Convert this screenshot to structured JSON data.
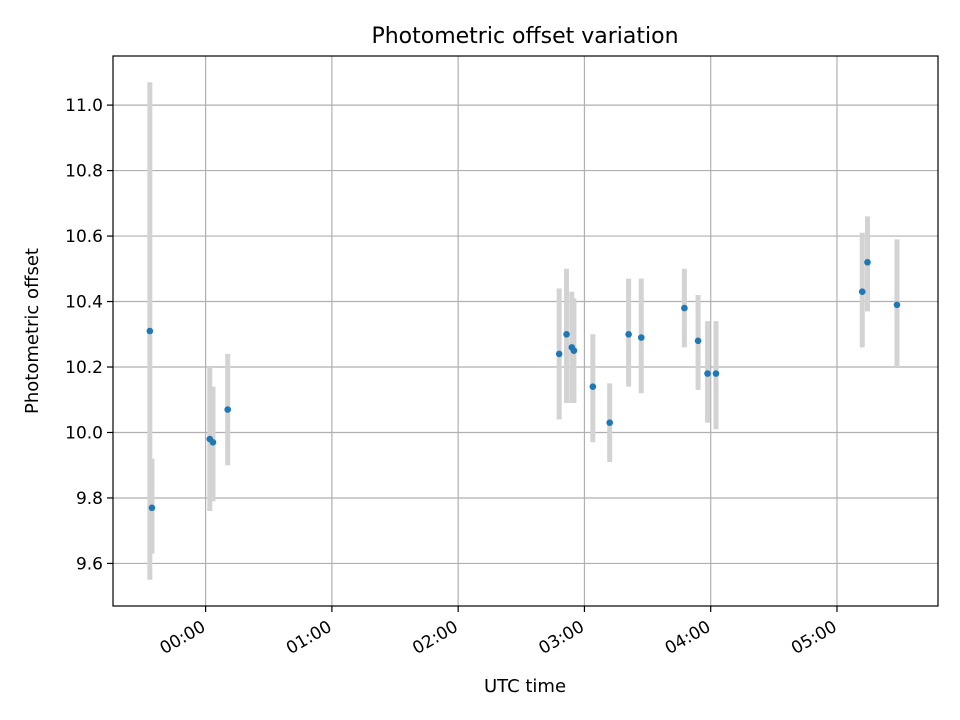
{
  "chart_data": {
    "type": "scatter",
    "title": "Photometric offset variation",
    "xlabel": "UTC time",
    "ylabel": "Photometric offset",
    "x_unit": "minutes after 00:00 UTC",
    "xlim": [
      -44,
      348
    ],
    "ylim": [
      9.47,
      11.15
    ],
    "grid": true,
    "x_ticks": [
      {
        "value": 0,
        "label": "00:00"
      },
      {
        "value": 60,
        "label": "01:00"
      },
      {
        "value": 120,
        "label": "02:00"
      },
      {
        "value": 180,
        "label": "03:00"
      },
      {
        "value": 240,
        "label": "04:00"
      },
      {
        "value": 300,
        "label": "05:00"
      }
    ],
    "y_ticks": [
      {
        "value": 9.6,
        "label": "9.6"
      },
      {
        "value": 9.8,
        "label": "9.8"
      },
      {
        "value": 10.0,
        "label": "10.0"
      },
      {
        "value": 10.2,
        "label": "10.2"
      },
      {
        "value": 10.4,
        "label": "10.4"
      },
      {
        "value": 10.6,
        "label": "10.6"
      },
      {
        "value": 10.8,
        "label": "10.8"
      },
      {
        "value": 11.0,
        "label": "11.0"
      }
    ],
    "colors": {
      "point": "#1f77b4",
      "errorbar": "#d3d3d3",
      "grid": "#b0b0b0"
    },
    "points": [
      {
        "x": -26.5,
        "y": 10.31,
        "ylow": 9.55,
        "yhigh": 11.07
      },
      {
        "x": -25.5,
        "y": 9.77,
        "ylow": 9.63,
        "yhigh": 9.92
      },
      {
        "x": 2.0,
        "y": 9.98,
        "ylow": 9.76,
        "yhigh": 10.2
      },
      {
        "x": 3.5,
        "y": 9.97,
        "ylow": 9.79,
        "yhigh": 10.14
      },
      {
        "x": 10.5,
        "y": 10.07,
        "ylow": 9.9,
        "yhigh": 10.24
      },
      {
        "x": 168.0,
        "y": 10.24,
        "ylow": 10.04,
        "yhigh": 10.44
      },
      {
        "x": 171.5,
        "y": 10.3,
        "ylow": 10.09,
        "yhigh": 10.5
      },
      {
        "x": 174.0,
        "y": 10.26,
        "ylow": 10.09,
        "yhigh": 10.43
      },
      {
        "x": 175.0,
        "y": 10.25,
        "ylow": 10.09,
        "yhigh": 10.41
      },
      {
        "x": 184.0,
        "y": 10.14,
        "ylow": 9.97,
        "yhigh": 10.3
      },
      {
        "x": 192.0,
        "y": 10.03,
        "ylow": 9.91,
        "yhigh": 10.15
      },
      {
        "x": 201.0,
        "y": 10.3,
        "ylow": 10.14,
        "yhigh": 10.47
      },
      {
        "x": 207.0,
        "y": 10.29,
        "ylow": 10.12,
        "yhigh": 10.47
      },
      {
        "x": 227.5,
        "y": 10.38,
        "ylow": 10.26,
        "yhigh": 10.5
      },
      {
        "x": 234.0,
        "y": 10.28,
        "ylow": 10.13,
        "yhigh": 10.42
      },
      {
        "x": 238.5,
        "y": 10.18,
        "ylow": 10.03,
        "yhigh": 10.34
      },
      {
        "x": 242.5,
        "y": 10.18,
        "ylow": 10.01,
        "yhigh": 10.34
      },
      {
        "x": 312.0,
        "y": 10.43,
        "ylow": 10.26,
        "yhigh": 10.61
      },
      {
        "x": 314.5,
        "y": 10.52,
        "ylow": 10.37,
        "yhigh": 10.66
      },
      {
        "x": 328.5,
        "y": 10.39,
        "ylow": 10.2,
        "yhigh": 10.59
      }
    ]
  }
}
